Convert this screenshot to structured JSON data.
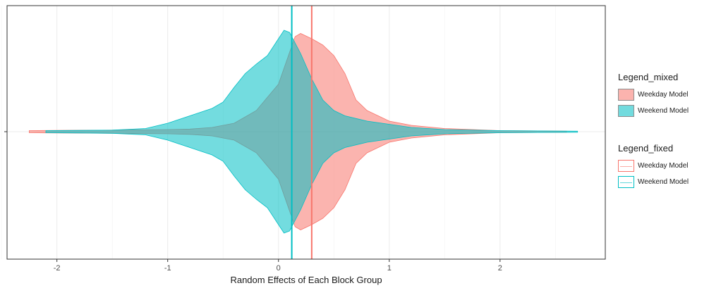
{
  "chart_data": {
    "type": "violin",
    "xlabel": "Random Effects of Each Block Group",
    "xlim": [
      -2.45,
      2.95
    ],
    "xticks": [
      -2,
      -1,
      0,
      1,
      2
    ],
    "xtick_labels": [
      "-2",
      "-1",
      "0",
      "1",
      "2"
    ],
    "grid": true,
    "legend_position": "right",
    "series": [
      {
        "name": "Weekday Model",
        "color": "#f8766d",
        "fixed_effect": 0.3,
        "range": [
          -2.25,
          2.6
        ],
        "density": [
          [
            -2.25,
            0.01
          ],
          [
            -2.0,
            0.012
          ],
          [
            -1.5,
            0.015
          ],
          [
            -1.0,
            0.02
          ],
          [
            -0.8,
            0.025
          ],
          [
            -0.6,
            0.04
          ],
          [
            -0.4,
            0.08
          ],
          [
            -0.2,
            0.2
          ],
          [
            0.0,
            0.45
          ],
          [
            0.1,
            0.75
          ],
          [
            0.15,
            0.9
          ],
          [
            0.2,
            0.93
          ],
          [
            0.3,
            0.88
          ],
          [
            0.4,
            0.82
          ],
          [
            0.5,
            0.72
          ],
          [
            0.6,
            0.55
          ],
          [
            0.7,
            0.3
          ],
          [
            0.8,
            0.2
          ],
          [
            0.9,
            0.15
          ],
          [
            1.0,
            0.1
          ],
          [
            1.2,
            0.06
          ],
          [
            1.5,
            0.03
          ],
          [
            2.0,
            0.01
          ],
          [
            2.6,
            0.005
          ]
        ]
      },
      {
        "name": "Weekend Model",
        "color": "#00bfc4",
        "fixed_effect": 0.12,
        "range": [
          -2.1,
          2.7
        ],
        "density": [
          [
            -2.1,
            0.01
          ],
          [
            -1.8,
            0.012
          ],
          [
            -1.5,
            0.015
          ],
          [
            -1.2,
            0.03
          ],
          [
            -1.0,
            0.08
          ],
          [
            -0.8,
            0.15
          ],
          [
            -0.6,
            0.22
          ],
          [
            -0.5,
            0.28
          ],
          [
            -0.4,
            0.42
          ],
          [
            -0.3,
            0.55
          ],
          [
            -0.2,
            0.64
          ],
          [
            -0.1,
            0.72
          ],
          [
            0.0,
            0.88
          ],
          [
            0.05,
            0.96
          ],
          [
            0.1,
            0.94
          ],
          [
            0.2,
            0.74
          ],
          [
            0.3,
            0.5
          ],
          [
            0.4,
            0.3
          ],
          [
            0.5,
            0.2
          ],
          [
            0.6,
            0.15
          ],
          [
            0.8,
            0.1
          ],
          [
            1.0,
            0.07
          ],
          [
            1.2,
            0.04
          ],
          [
            1.5,
            0.02
          ],
          [
            2.0,
            0.01
          ],
          [
            2.7,
            0.005
          ]
        ]
      }
    ]
  },
  "legend_mixed": {
    "title": "Legend_mixed",
    "items": [
      {
        "label": "Weekday Model",
        "fill": "#f8766d",
        "border": "#333333"
      },
      {
        "label": "Weekend Model",
        "fill": "#00bfc4",
        "border": "#333333"
      }
    ]
  },
  "legend_fixed": {
    "title": "Legend_fixed",
    "items": [
      {
        "label": "Weekday Model",
        "color": "#f8766d"
      },
      {
        "label": "Weekend Model",
        "color": "#00bfc4"
      }
    ]
  }
}
